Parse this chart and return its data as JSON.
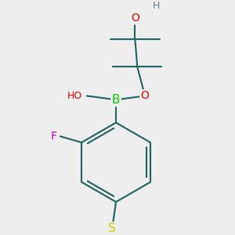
{
  "background_color": "#eeeeee",
  "colors": {
    "bond": "#2d6b6b",
    "H": "#708090",
    "O": "#ff0000",
    "B": "#00cc00",
    "F": "#cc00cc",
    "S": "#cccc00"
  },
  "figsize": [
    3.0,
    3.0
  ],
  "dpi": 100
}
